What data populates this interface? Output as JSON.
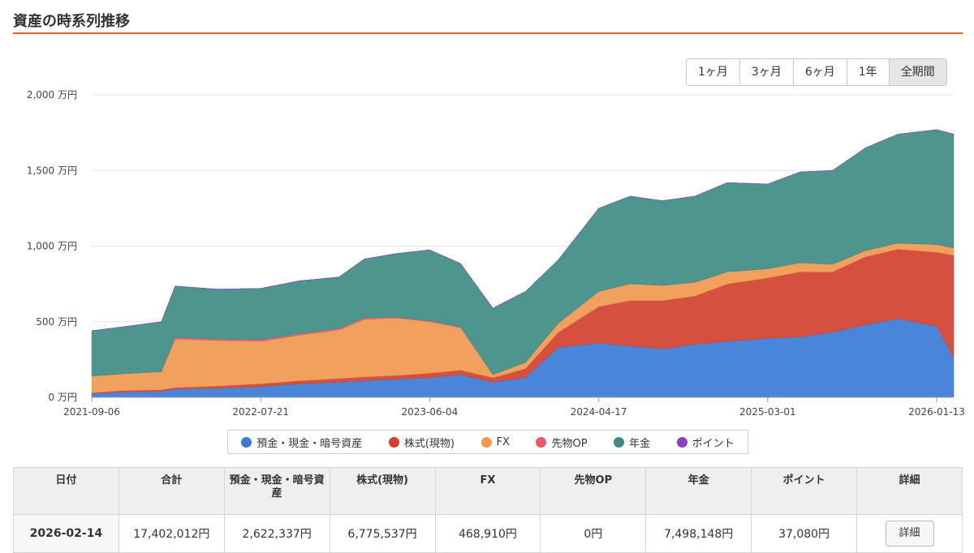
{
  "page": {
    "title": "資産の時系列推移"
  },
  "periods": [
    {
      "label": "1ヶ月",
      "active": false
    },
    {
      "label": "3ヶ月",
      "active": false
    },
    {
      "label": "6ヶ月",
      "active": false
    },
    {
      "label": "1年",
      "active": false
    },
    {
      "label": "全期間",
      "active": true
    }
  ],
  "chart_data": {
    "type": "area",
    "stacked": true,
    "y_unit": "万円",
    "ylim": [
      0,
      2000
    ],
    "yticks": [
      "0 万円",
      "500 万円",
      "1,000 万円",
      "1,500 万円",
      "2,000 万円"
    ],
    "ytick_values": [
      0,
      500,
      1000,
      1500,
      2000
    ],
    "xlim": [
      "2021-09-06",
      "2026-02-14"
    ],
    "xticks": [
      "2021-09-06",
      "2022-07-21",
      "2023-06-04",
      "2024-04-17",
      "2025-03-01",
      "2026-01-13"
    ],
    "grid": true,
    "legend_position": "bottom",
    "x": [
      "2021-09-06",
      "2021-11-01",
      "2022-01-15",
      "2022-02-10",
      "2022-05-01",
      "2022-07-21",
      "2022-10-01",
      "2022-12-15",
      "2023-02-01",
      "2023-04-01",
      "2023-06-04",
      "2023-08-01",
      "2023-10-01",
      "2023-12-01",
      "2024-02-01",
      "2024-04-17",
      "2024-06-15",
      "2024-08-15",
      "2024-10-15",
      "2024-12-15",
      "2025-03-01",
      "2025-05-01",
      "2025-07-01",
      "2025-09-01",
      "2025-11-01",
      "2026-01-13",
      "2026-02-14"
    ],
    "series": [
      {
        "name": "預金・現金・暗号資産",
        "color": "#3a7bd5",
        "values": [
          25,
          35,
          40,
          55,
          60,
          70,
          90,
          100,
          110,
          120,
          130,
          150,
          100,
          130,
          330,
          360,
          340,
          320,
          350,
          370,
          390,
          400,
          430,
          480,
          520,
          470,
          262
        ]
      },
      {
        "name": "株式(現物)",
        "color": "#d2412f",
        "values": [
          5,
          10,
          10,
          10,
          15,
          20,
          20,
          25,
          25,
          25,
          30,
          30,
          30,
          60,
          100,
          240,
          300,
          320,
          320,
          380,
          400,
          430,
          400,
          450,
          460,
          490,
          678
        ]
      },
      {
        "name": "FX",
        "color": "#f0994f",
        "values": [
          110,
          110,
          120,
          320,
          300,
          280,
          300,
          320,
          380,
          380,
          340,
          280,
          20,
          40,
          60,
          100,
          110,
          100,
          90,
          80,
          60,
          60,
          50,
          40,
          40,
          50,
          47
        ]
      },
      {
        "name": "先物OP",
        "color": "#e8596a",
        "values": [
          0,
          0,
          0,
          10,
          10,
          10,
          10,
          10,
          10,
          5,
          5,
          5,
          0,
          0,
          0,
          0,
          0,
          0,
          0,
          0,
          0,
          0,
          0,
          0,
          0,
          0,
          0
        ]
      },
      {
        "name": "年金",
        "color": "#3f8c84",
        "values": [
          300,
          310,
          330,
          340,
          330,
          340,
          350,
          340,
          390,
          420,
          470,
          420,
          440,
          470,
          420,
          550,
          580,
          560,
          570,
          590,
          560,
          600,
          620,
          680,
          720,
          760,
          750
        ]
      },
      {
        "name": "ポイント",
        "color": "#8e3fc0",
        "values": [
          0,
          0,
          0,
          0,
          0,
          0,
          0,
          0,
          0,
          0,
          0,
          0,
          0,
          0,
          0,
          0,
          0,
          0,
          0,
          0,
          0,
          0,
          0,
          0,
          0,
          0,
          4
        ]
      }
    ]
  },
  "table": {
    "headers": [
      "日付",
      "合計",
      "預金・現金・暗号資産",
      "株式(現物)",
      "FX",
      "先物OP",
      "年金",
      "ポイント",
      "詳細"
    ],
    "rows": [
      {
        "date": "2026-02-14",
        "total": "17,402,012円",
        "deposit": "2,622,337円",
        "stock": "6,775,537円",
        "fx": "468,910円",
        "futures": "0円",
        "pension": "7,498,148円",
        "points": "37,080円",
        "detail_label": "詳細"
      }
    ]
  }
}
